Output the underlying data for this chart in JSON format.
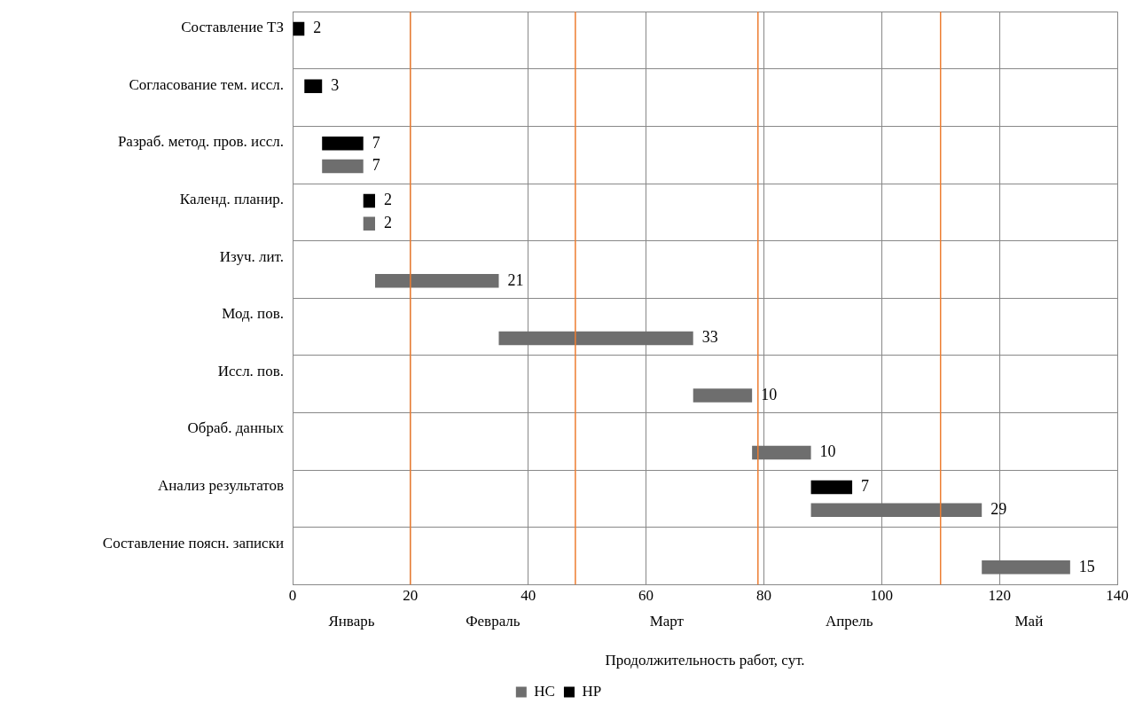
{
  "chart_data": {
    "type": "bar",
    "orientation": "horizontal",
    "xlabel": "Продолжительность работ, сут.",
    "categories": [
      "Составление ТЗ",
      "Согласование тем. иссл.",
      "Разраб. метод. пров. иссл.",
      "Календ. планир.",
      "Изуч. лит.",
      "Мод. пов.",
      "Иссл. пов.",
      "Обраб. данных",
      "Анализ результатов",
      "Составление поясн. записки"
    ],
    "series": [
      {
        "name": "НР",
        "color": "#000000",
        "base": [
          0,
          2,
          5,
          12,
          null,
          null,
          null,
          null,
          88,
          null
        ],
        "values": [
          2,
          3,
          7,
          2,
          null,
          null,
          null,
          null,
          7,
          null
        ]
      },
      {
        "name": "НС",
        "color": "#6e6e6e",
        "base": [
          null,
          null,
          5,
          12,
          14,
          35,
          68,
          78,
          88,
          117
        ],
        "values": [
          null,
          null,
          7,
          2,
          21,
          33,
          10,
          10,
          29,
          15
        ]
      }
    ],
    "xlim": [
      0,
      140
    ],
    "xticks": [
      0,
      20,
      40,
      60,
      80,
      100,
      120,
      140
    ],
    "grid": true,
    "legend": "bottom",
    "data_labels": true,
    "ref_lines": [
      {
        "axis": "x",
        "value": 20,
        "color": "#ed7d31"
      },
      {
        "axis": "x",
        "value": 48,
        "color": "#ed7d31"
      },
      {
        "axis": "x",
        "value": 79,
        "color": "#ed7d31"
      },
      {
        "axis": "x",
        "value": 110,
        "color": "#ed7d31"
      }
    ],
    "annotations": [
      "Январь",
      "Февраль",
      "Март",
      "Апрель",
      "Май"
    ]
  }
}
